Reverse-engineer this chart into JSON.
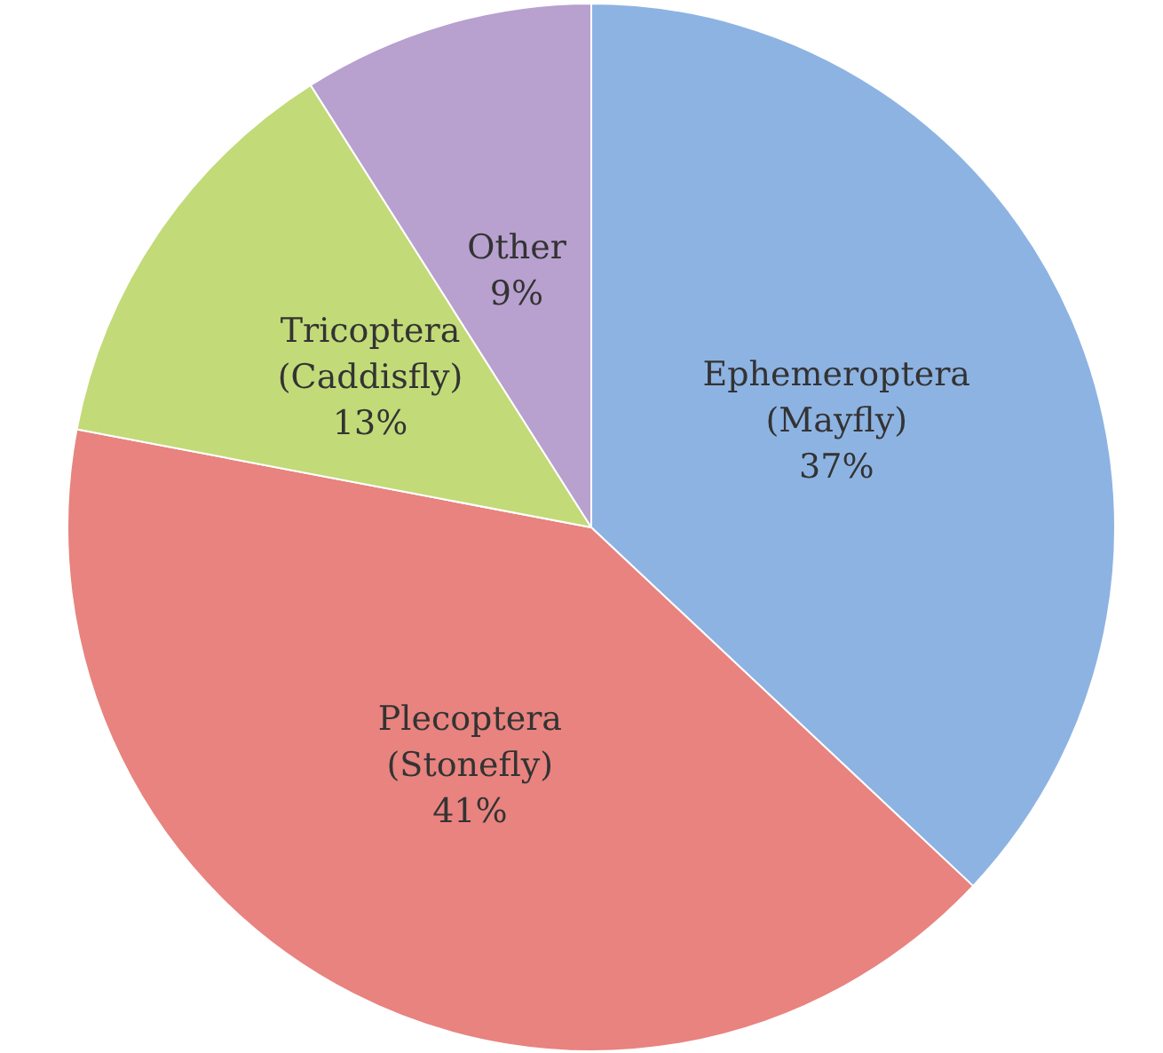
{
  "chart_data": {
    "type": "pie",
    "categories": [
      "Ephemeroptera\n(Mayfly)",
      "Plecoptera\n(Stonefly)",
      "Tricoptera\n(Caddisfly)",
      "Other"
    ],
    "values": [
      37,
      41,
      13,
      9
    ],
    "value_labels": [
      "37%",
      "41%",
      "13%",
      "9%"
    ],
    "colors": [
      "#8db3e2",
      "#e8837f",
      "#c2da78",
      "#b8a0cf"
    ],
    "legend": false
  }
}
